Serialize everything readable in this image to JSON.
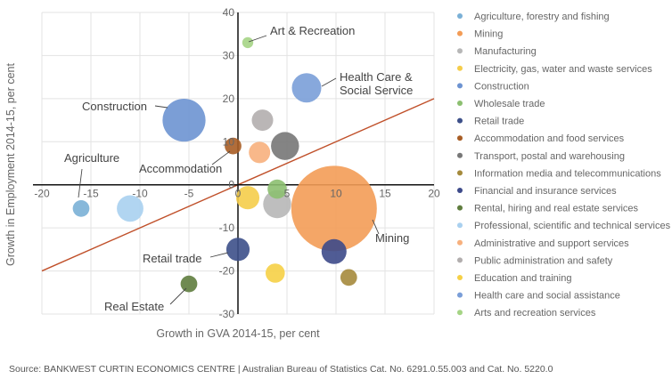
{
  "chart_data": {
    "type": "scatter",
    "title": "",
    "xlabel": "Growth in GVA 2014-15, per cent",
    "ylabel": "Growth in Employment 2014-15, per cent",
    "xlim": [
      -20,
      20
    ],
    "ylim": [
      -30,
      40
    ],
    "xticks": [
      -20,
      -15,
      -10,
      -5,
      0,
      5,
      10,
      15,
      20
    ],
    "yticks": [
      -30,
      -20,
      -10,
      0,
      10,
      20,
      30,
      40
    ],
    "grid": true,
    "legend_position": "right",
    "trend_line": {
      "x": [
        -20,
        20
      ],
      "y": [
        -20,
        20
      ],
      "color": "#c0502a"
    },
    "series": [
      {
        "name": "Agriculture, forestry and fishing",
        "color": "#7ab0d6",
        "x": -16,
        "y": -5.5,
        "size": 2
      },
      {
        "name": "Mining",
        "color": "#f39c56",
        "x": 9.8,
        "y": -5.5,
        "size": 100
      },
      {
        "name": "Manufacturing",
        "color": "#b7b7b7",
        "x": 4,
        "y": -4.5,
        "size": 8
      },
      {
        "name": "Electricity, gas, water and waste services",
        "color": "#f5cd4a",
        "x": 1,
        "y": -3,
        "size": 5
      },
      {
        "name": "Construction",
        "color": "#6d93d1",
        "x": -5.5,
        "y": 15,
        "size": 22
      },
      {
        "name": "Wholesale trade",
        "color": "#8cbf70",
        "x": 4,
        "y": -1,
        "size": 3
      },
      {
        "name": "Retail trade",
        "color": "#3d5089",
        "x": 0,
        "y": -15,
        "size": 5
      },
      {
        "name": "Accommodation and food services",
        "color": "#a85d25",
        "x": -0.5,
        "y": 9,
        "size": 2
      },
      {
        "name": "Transport, postal and warehousing",
        "color": "#777777",
        "x": 4.8,
        "y": 9,
        "size": 8
      },
      {
        "name": "Information media and telecommunications",
        "color": "#a58a3c",
        "x": 11.3,
        "y": -21.5,
        "size": 2
      },
      {
        "name": "Financial and insurance services",
        "color": "#3d4a8a",
        "x": 9.8,
        "y": -15.5,
        "size": 6
      },
      {
        "name": "Rental, hiring and real estate services",
        "color": "#5f7d3e",
        "x": -5,
        "y": -23,
        "size": 2
      },
      {
        "name": "Professional, scientific and technical services",
        "color": "#a9d0ef",
        "x": -11,
        "y": -5.5,
        "size": 7
      },
      {
        "name": "Administrative and support services",
        "color": "#f7b07d",
        "x": 2.2,
        "y": 7.5,
        "size": 4
      },
      {
        "name": "Public administration and safety",
        "color": "#b2aeae",
        "x": 2.5,
        "y": 15,
        "size": 4
      },
      {
        "name": "Education and training",
        "color": "#f6d046",
        "x": 3.8,
        "y": -20.5,
        "size": 3
      },
      {
        "name": "Health care and social assistance",
        "color": "#7a9ed8",
        "x": 7,
        "y": 22.5,
        "size": 9
      },
      {
        "name": "Arts and recreation services",
        "color": "#a5d485",
        "x": 1,
        "y": 33,
        "size": 0.5
      }
    ],
    "annotations": [
      {
        "text": "Art & Recreation",
        "x": 1,
        "y": 33
      },
      {
        "text": "Health Care &",
        "x": 7,
        "y": 22.5
      },
      {
        "text": "Social Service",
        "x": 7,
        "y": 22.5
      },
      {
        "text": "Construction",
        "x": -5.5,
        "y": 15
      },
      {
        "text": "Agriculture",
        "x": -16,
        "y": -5.5
      },
      {
        "text": "Accommodation",
        "x": -0.5,
        "y": 9
      },
      {
        "text": "Retail trade",
        "x": 0,
        "y": -15
      },
      {
        "text": "Real Estate",
        "x": -5,
        "y": -23
      },
      {
        "text": "Mining",
        "x": 9.8,
        "y": -5.5
      }
    ]
  },
  "source_text": "Source:   BANKWEST CURTIN ECONOMICS CENTRE | Australian Bureau of Statistics Cat. No. 6291.0.55.003 and Cat. No. 5220.0"
}
